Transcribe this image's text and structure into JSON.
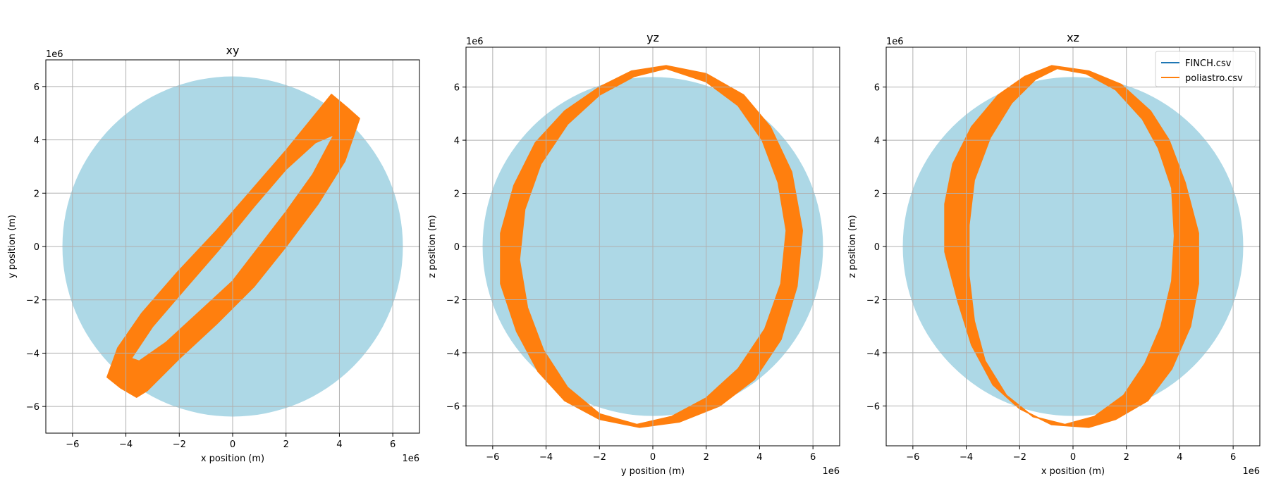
{
  "colors": {
    "earth": "#add8e6",
    "grid": "#b0b0b0",
    "finch": "#1f77b4",
    "poliastro": "#ff7f0e"
  },
  "legend": {
    "placement": "top-right of xz panel",
    "entries": [
      {
        "label": "FINCH.csv",
        "color": "#1f77b4"
      },
      {
        "label": "poliastro.csv",
        "color": "#ff7f0e"
      }
    ]
  },
  "chart_data": [
    {
      "type": "line",
      "title": "xy",
      "xlabel": "x position (m)",
      "ylabel": "y position (m)",
      "x_offset_label": "1e6",
      "y_offset_label": "1e6",
      "xlim": [
        -7.0,
        7.0
      ],
      "ylim": [
        -7.0,
        7.0
      ],
      "xticks": [
        -6,
        -4,
        -2,
        0,
        2,
        4,
        6
      ],
      "yticks": [
        -6,
        -4,
        -2,
        0,
        2,
        4,
        6
      ],
      "tick_labels_x": [
        "−6",
        "−4",
        "−2",
        "0",
        "2",
        "4",
        "6"
      ],
      "tick_labels_y": [
        "−6",
        "−4",
        "−2",
        "0",
        "2",
        "4",
        "6"
      ],
      "grid": true,
      "earth_radius": 6.378,
      "orbit_band": {
        "outer": [
          [
            3.7,
            5.7
          ],
          [
            4.3,
            5.2
          ],
          [
            4.75,
            4.8
          ],
          [
            4.2,
            3.2
          ],
          [
            3.2,
            1.6
          ],
          [
            2.0,
            0.0
          ],
          [
            0.8,
            -1.5
          ],
          [
            -0.6,
            -2.9
          ],
          [
            -2.0,
            -4.2
          ],
          [
            -3.2,
            -5.4
          ],
          [
            -3.6,
            -5.65
          ],
          [
            -4.2,
            -5.3
          ],
          [
            -4.7,
            -4.9
          ],
          [
            -4.3,
            -3.8
          ],
          [
            -3.4,
            -2.5
          ],
          [
            -2.1,
            -1.0
          ],
          [
            -0.6,
            0.6
          ],
          [
            0.7,
            2.1
          ],
          [
            2.0,
            3.6
          ],
          [
            3.3,
            5.2
          ]
        ],
        "inner": [
          [
            3.8,
            4.2
          ],
          [
            3.0,
            2.7
          ],
          [
            2.0,
            1.3
          ],
          [
            1.0,
            0.0
          ],
          [
            0.0,
            -1.3
          ],
          [
            -1.3,
            -2.5
          ],
          [
            -2.5,
            -3.6
          ],
          [
            -3.5,
            -4.3
          ],
          [
            -3.8,
            -4.2
          ],
          [
            -3.0,
            -3.0
          ],
          [
            -1.8,
            -1.6
          ],
          [
            -0.5,
            -0.1
          ],
          [
            0.8,
            1.5
          ],
          [
            2.0,
            2.9
          ],
          [
            3.1,
            3.9
          ]
        ]
      },
      "series": [
        {
          "name": "FINCH.csv"
        },
        {
          "name": "poliastro.csv"
        }
      ]
    },
    {
      "type": "line",
      "title": "yz",
      "xlabel": "y position (m)",
      "ylabel": "z position (m)",
      "x_offset_label": "1e6",
      "y_offset_label": "1e6",
      "xlim": [
        -7.0,
        7.0
      ],
      "ylim": [
        -7.5,
        7.5
      ],
      "xticks": [
        -6,
        -4,
        -2,
        0,
        2,
        4,
        6
      ],
      "yticks": [
        -6,
        -4,
        -2,
        0,
        2,
        4,
        6
      ],
      "tick_labels_x": [
        "−6",
        "−4",
        "−2",
        "0",
        "2",
        "4",
        "6"
      ],
      "tick_labels_y": [
        "−6",
        "−4",
        "−2",
        "0",
        "2",
        "4",
        "6"
      ],
      "grid": true,
      "earth_radius": 6.378,
      "orbit_band": {
        "outer": [
          [
            0.5,
            6.8
          ],
          [
            2.0,
            6.5
          ],
          [
            3.4,
            5.7
          ],
          [
            4.4,
            4.5
          ],
          [
            5.2,
            2.8
          ],
          [
            5.6,
            0.6
          ],
          [
            5.4,
            -1.5
          ],
          [
            4.8,
            -3.5
          ],
          [
            3.8,
            -5.0
          ],
          [
            2.5,
            -6.0
          ],
          [
            1.0,
            -6.6
          ],
          [
            -0.5,
            -6.8
          ],
          [
            -2.0,
            -6.5
          ],
          [
            -3.3,
            -5.8
          ],
          [
            -4.3,
            -4.7
          ],
          [
            -5.1,
            -3.2
          ],
          [
            -5.7,
            -1.4
          ],
          [
            -5.7,
            0.5
          ],
          [
            -5.2,
            2.3
          ],
          [
            -4.4,
            3.9
          ],
          [
            -3.3,
            5.1
          ],
          [
            -2.0,
            6.0
          ],
          [
            -0.8,
            6.6
          ]
        ],
        "inner": [
          [
            0.5,
            6.7
          ],
          [
            2.0,
            6.2
          ],
          [
            3.2,
            5.3
          ],
          [
            4.1,
            4.0
          ],
          [
            4.7,
            2.4
          ],
          [
            5.0,
            0.6
          ],
          [
            4.8,
            -1.4
          ],
          [
            4.2,
            -3.1
          ],
          [
            3.2,
            -4.6
          ],
          [
            2.0,
            -5.7
          ],
          [
            0.7,
            -6.4
          ],
          [
            -0.6,
            -6.7
          ],
          [
            -2.0,
            -6.3
          ],
          [
            -3.2,
            -5.3
          ],
          [
            -4.1,
            -3.9
          ],
          [
            -4.7,
            -2.3
          ],
          [
            -5.0,
            -0.5
          ],
          [
            -4.8,
            1.4
          ],
          [
            -4.2,
            3.1
          ],
          [
            -3.2,
            4.6
          ],
          [
            -2.0,
            5.7
          ],
          [
            -0.7,
            6.4
          ]
        ]
      },
      "series": [
        {
          "name": "FINCH.csv"
        },
        {
          "name": "poliastro.csv"
        }
      ]
    },
    {
      "type": "line",
      "title": "xz",
      "xlabel": "x position (m)",
      "ylabel": "z position (m)",
      "x_offset_label": "1e6",
      "y_offset_label": "1e6",
      "xlim": [
        -7.0,
        7.0
      ],
      "ylim": [
        -7.5,
        7.5
      ],
      "xticks": [
        -6,
        -4,
        -2,
        0,
        2,
        4,
        6
      ],
      "yticks": [
        -6,
        -4,
        -2,
        0,
        2,
        4,
        6
      ],
      "tick_labels_x": [
        "−6",
        "−4",
        "−2",
        "0",
        "2",
        "4",
        "6"
      ],
      "tick_labels_y": [
        "−6",
        "−4",
        "−2",
        "0",
        "2",
        "4",
        "6"
      ],
      "grid": true,
      "earth_radius": 6.378,
      "orbit_band": {
        "outer": [
          [
            -0.8,
            6.8
          ],
          [
            0.6,
            6.6
          ],
          [
            1.8,
            6.1
          ],
          [
            2.9,
            5.1
          ],
          [
            3.6,
            4.0
          ],
          [
            4.2,
            2.4
          ],
          [
            4.7,
            0.5
          ],
          [
            4.7,
            -1.4
          ],
          [
            4.4,
            -3.0
          ],
          [
            3.7,
            -4.6
          ],
          [
            2.8,
            -5.8
          ],
          [
            1.6,
            -6.5
          ],
          [
            0.6,
            -6.8
          ],
          [
            -0.8,
            -6.7
          ],
          [
            -2.0,
            -6.1
          ],
          [
            -3.0,
            -5.2
          ],
          [
            -3.8,
            -3.7
          ],
          [
            -4.3,
            -2.1
          ],
          [
            -4.8,
            -0.2
          ],
          [
            -4.8,
            1.6
          ],
          [
            -4.5,
            3.1
          ],
          [
            -3.8,
            4.5
          ],
          [
            -2.8,
            5.7
          ],
          [
            -1.8,
            6.4
          ]
        ],
        "inner": [
          [
            -0.6,
            6.7
          ],
          [
            0.5,
            6.5
          ],
          [
            1.6,
            5.9
          ],
          [
            2.6,
            4.8
          ],
          [
            3.2,
            3.7
          ],
          [
            3.7,
            2.2
          ],
          [
            3.8,
            0.4
          ],
          [
            3.7,
            -1.3
          ],
          [
            3.3,
            -3.0
          ],
          [
            2.7,
            -4.4
          ],
          [
            1.9,
            -5.6
          ],
          [
            0.8,
            -6.4
          ],
          [
            -0.3,
            -6.7
          ],
          [
            -1.5,
            -6.4
          ],
          [
            -2.5,
            -5.6
          ],
          [
            -3.3,
            -4.3
          ],
          [
            -3.7,
            -2.8
          ],
          [
            -3.9,
            -1.1
          ],
          [
            -3.9,
            0.8
          ],
          [
            -3.7,
            2.5
          ],
          [
            -3.1,
            4.1
          ],
          [
            -2.3,
            5.4
          ],
          [
            -1.4,
            6.3
          ]
        ]
      },
      "series": [
        {
          "name": "FINCH.csv"
        },
        {
          "name": "poliastro.csv"
        }
      ]
    }
  ]
}
